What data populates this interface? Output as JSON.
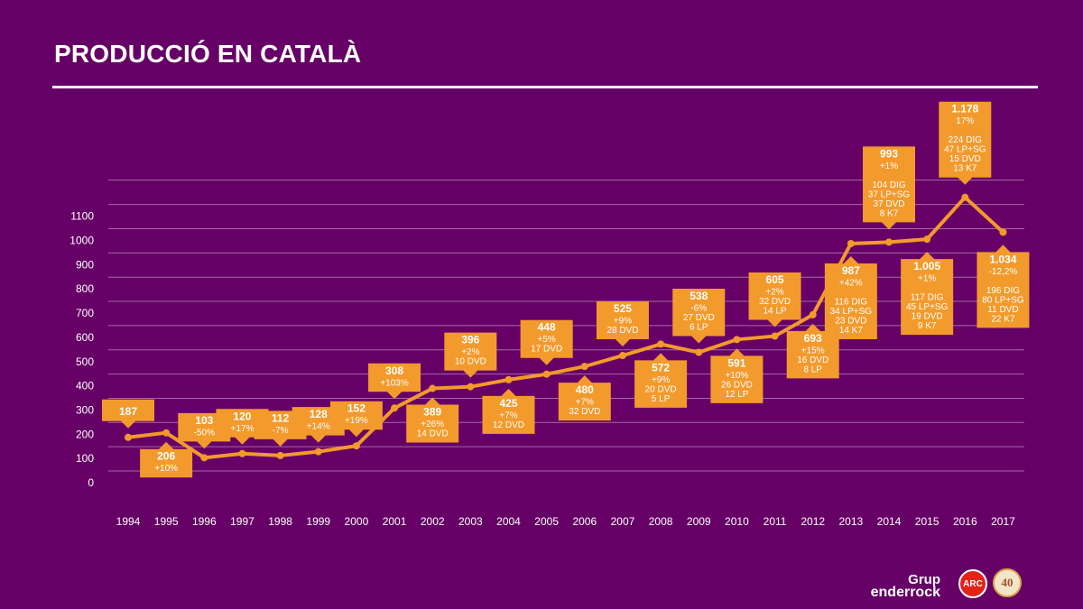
{
  "page_title": "PRODUCCIÓ EN CATALÀ",
  "colors": {
    "background": "#660066",
    "accent": "#f39a2c",
    "gridline": "#a36aa3",
    "axis_text": "#ffffff"
  },
  "logos": {
    "grup": "Grup",
    "enderrock": "enderrock",
    "arc": "ARC",
    "anniversary": "40"
  },
  "chart_data": {
    "type": "line",
    "title": "PRODUCCIÓ EN CATALÀ",
    "xlabel": "",
    "ylabel": "",
    "ylim": [
      0,
      1100
    ],
    "y_ticks": [
      "0",
      "100",
      "200",
      "300",
      "400",
      "500",
      "600",
      "700",
      "800",
      "900",
      "1000",
      "1100"
    ],
    "categories": [
      "1994",
      "1995",
      "1996",
      "1997",
      "1998",
      "1999",
      "2000",
      "2001",
      "2002",
      "2003",
      "2004",
      "2005",
      "2006",
      "2007",
      "2008",
      "2009",
      "2010",
      "2011",
      "2012",
      "2013",
      "2014",
      "2015",
      "2016",
      "2017"
    ],
    "values": [
      187,
      206,
      103,
      120,
      112,
      128,
      152,
      308,
      389,
      396,
      425,
      448,
      480,
      525,
      572,
      538,
      591,
      605,
      693,
      987,
      993,
      1005,
      1178,
      1034
    ],
    "grid": true,
    "labels": [
      {
        "year": "1994",
        "lines": [
          "187"
        ],
        "side": "above"
      },
      {
        "year": "1995",
        "lines": [
          "206",
          "+10%"
        ],
        "side": "below"
      },
      {
        "year": "1996",
        "lines": [
          "103",
          "-50%"
        ],
        "side": "above"
      },
      {
        "year": "1997",
        "lines": [
          "120",
          "+17%"
        ],
        "side": "above"
      },
      {
        "year": "1998",
        "lines": [
          "112",
          "-7%"
        ],
        "side": "above"
      },
      {
        "year": "1999",
        "lines": [
          "128",
          "+14%"
        ],
        "side": "above"
      },
      {
        "year": "2000",
        "lines": [
          "152",
          "+19%"
        ],
        "side": "above"
      },
      {
        "year": "2001",
        "lines": [
          "308",
          "+103%"
        ],
        "side": "above"
      },
      {
        "year": "2002",
        "lines": [
          "389",
          "+26%",
          "14 DVD"
        ],
        "side": "below"
      },
      {
        "year": "2003",
        "lines": [
          "396",
          "+2%",
          "10 DVD"
        ],
        "side": "above"
      },
      {
        "year": "2004",
        "lines": [
          "425",
          "+7%",
          "12 DVD"
        ],
        "side": "below"
      },
      {
        "year": "2005",
        "lines": [
          "448",
          "+5%",
          "17 DVD"
        ],
        "side": "above"
      },
      {
        "year": "2006",
        "lines": [
          "480",
          "+7%",
          "32 DVD"
        ],
        "side": "below"
      },
      {
        "year": "2007",
        "lines": [
          "525",
          "+9%",
          "28 DVD"
        ],
        "side": "above"
      },
      {
        "year": "2008",
        "lines": [
          "572",
          "+9%",
          "20 DVD",
          "5 LP"
        ],
        "side": "below"
      },
      {
        "year": "2009",
        "lines": [
          "538",
          "-6%",
          "27 DVD",
          "6 LP"
        ],
        "side": "above"
      },
      {
        "year": "2010",
        "lines": [
          "591",
          "+10%",
          "26 DVD",
          "12 LP"
        ],
        "side": "below"
      },
      {
        "year": "2011",
        "lines": [
          "605",
          "+2%",
          "32 DVD",
          "14 LP"
        ],
        "side": "above"
      },
      {
        "year": "2012",
        "lines": [
          "693",
          "+15%",
          "16 DVD",
          "8 LP"
        ],
        "side": "below"
      },
      {
        "year": "2013",
        "lines": [
          "987",
          "+42%",
          "",
          "116 DIG",
          "34 LP+SG",
          "23 DVD",
          "14 K7"
        ],
        "side": "below"
      },
      {
        "year": "2014",
        "lines": [
          "993",
          "+1%",
          "",
          "104 DIG",
          "37 LP+SG",
          "37 DVD",
          "8 K7"
        ],
        "side": "above"
      },
      {
        "year": "2015",
        "lines": [
          "1.005",
          "+1%",
          "",
          "117 DIG",
          "45 LP+SG",
          "19 DVD",
          "9 K7"
        ],
        "side": "below"
      },
      {
        "year": "2016",
        "lines": [
          "1.178",
          "17%",
          "",
          "224 DIG",
          "47 LP+SG",
          "15 DVD",
          "13 K7"
        ],
        "side": "above"
      },
      {
        "year": "2017",
        "lines": [
          "1.034",
          "-12,2%",
          "",
          "196 DIG",
          "80 LP+SG",
          "11 DVD",
          "22 K7"
        ],
        "side": "below"
      }
    ]
  }
}
